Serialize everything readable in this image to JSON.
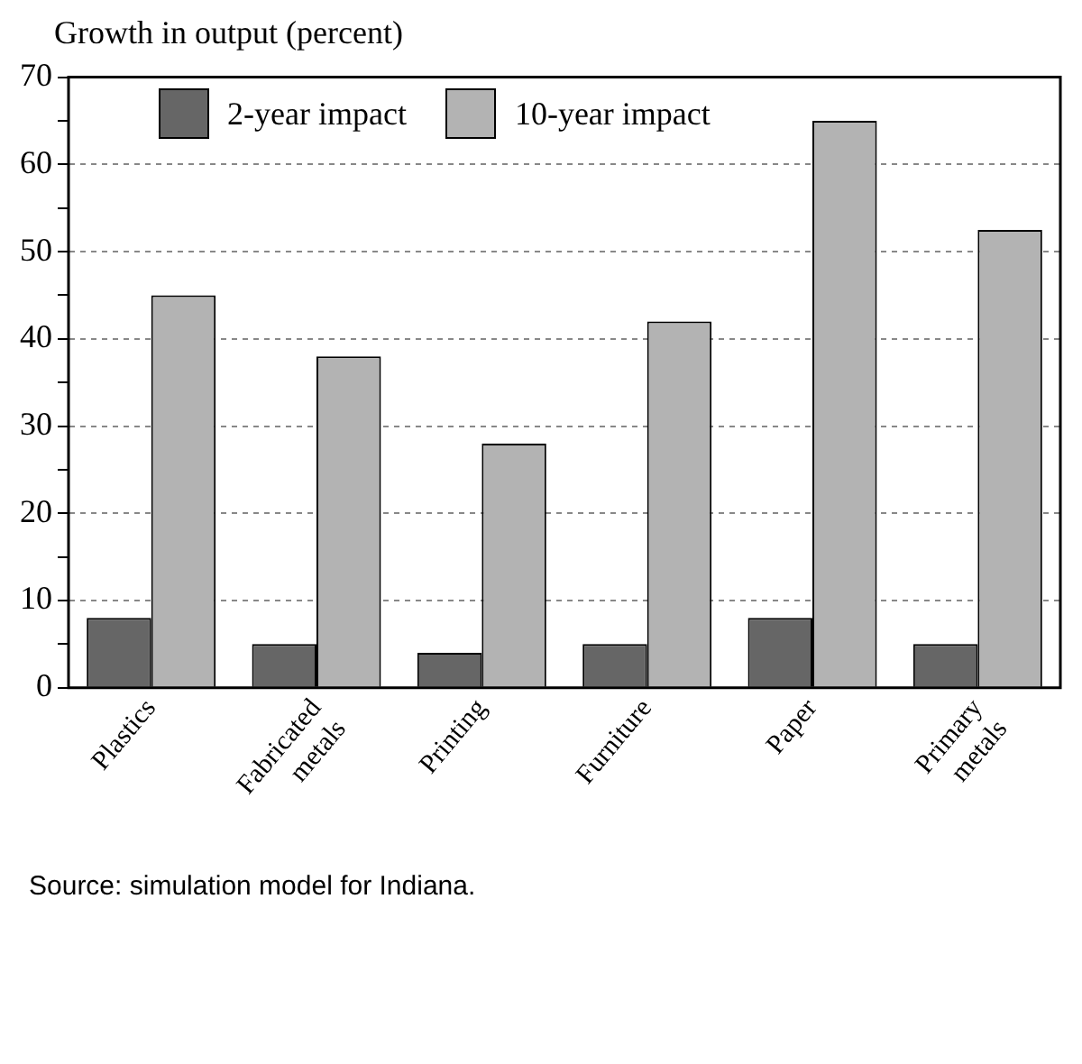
{
  "chart_data": {
    "type": "bar",
    "ylabel": "Growth in output (percent)",
    "categories": [
      "Plastics",
      "Fabricated metals",
      "Printing",
      "Furniture",
      "Paper",
      "Primary metals"
    ],
    "series": [
      {
        "name": "2-year impact",
        "color": "#666666",
        "values": [
          8,
          5,
          4,
          5,
          8,
          5
        ]
      },
      {
        "name": "10-year impact",
        "color": "#b3b3b3",
        "values": [
          45,
          38,
          28,
          42,
          65,
          52.5
        ]
      }
    ],
    "ylim": [
      0,
      70
    ],
    "yticks": [
      0,
      {
        "value": 5,
        "label": null
      },
      10,
      {
        "value": 15,
        "label": null
      },
      20,
      {
        "value": 25,
        "label": null
      },
      30,
      {
        "value": 35,
        "label": null
      },
      40,
      {
        "value": 45,
        "label": null
      },
      50,
      {
        "value": 55,
        "label": null
      },
      60,
      {
        "value": 65,
        "label": null
      },
      70
    ],
    "grid": "y",
    "legend": "top left",
    "annotations": [
      "Source: simulation model for Indiana."
    ]
  }
}
